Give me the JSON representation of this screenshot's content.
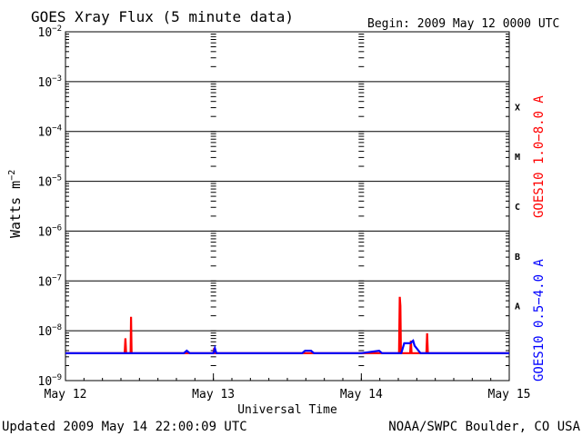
{
  "chart_data": {
    "type": "line",
    "title": "GOES Xray Flux (5 minute data)",
    "begin_text": "Begin:  2009 May 12 0000 UTC",
    "ylabel_main": "Watts m",
    "ylabel_exp": "−2",
    "xlabel": "Universal Time",
    "footer_left": "Updated 2009 May 14 22:00:09 UTC",
    "footer_right": "NOAA/SWPC Boulder, CO USA",
    "y_scale": "log",
    "ylim": [
      "1e-9",
      "1e-2"
    ],
    "y_ticks": [
      {
        "base": "10",
        "exp": "−2",
        "exponent": -2
      },
      {
        "base": "10",
        "exp": "−3",
        "exponent": -3
      },
      {
        "base": "10",
        "exp": "−4",
        "exponent": -4
      },
      {
        "base": "10",
        "exp": "−5",
        "exponent": -5
      },
      {
        "base": "10",
        "exp": "−6",
        "exponent": -6
      },
      {
        "base": "10",
        "exp": "−7",
        "exponent": -7
      },
      {
        "base": "10",
        "exp": "−8",
        "exponent": -8
      },
      {
        "base": "10",
        "exp": "−9",
        "exponent": -9
      }
    ],
    "x_ticks": [
      {
        "label": "May 12",
        "day": 0
      },
      {
        "label": "May 13",
        "day": 1
      },
      {
        "label": "May 14",
        "day": 2
      },
      {
        "label": "May 15",
        "day": 3
      }
    ],
    "xlim_days": [
      0,
      3
    ],
    "flare_classes": [
      {
        "label": "X",
        "exponent": -3.5
      },
      {
        "label": "M",
        "exponent": -4.5
      },
      {
        "label": "C",
        "exponent": -5.5
      },
      {
        "label": "B",
        "exponent": -6.5
      },
      {
        "label": "A",
        "exponent": -7.5
      }
    ],
    "series": [
      {
        "name": "GOES10 1.0−8.0 A",
        "color": "#ff0000",
        "points": [
          [
            0.0,
            -8.45
          ],
          [
            0.4,
            -8.45
          ],
          [
            0.405,
            -8.15
          ],
          [
            0.41,
            -8.45
          ],
          [
            0.44,
            -8.45
          ],
          [
            0.443,
            -7.72
          ],
          [
            0.447,
            -8.45
          ],
          [
            0.6,
            -8.45
          ],
          [
            1.0,
            -8.45
          ],
          [
            1.005,
            -8.35
          ],
          [
            1.01,
            -8.45
          ],
          [
            1.6,
            -8.45
          ],
          [
            2.0,
            -8.45
          ],
          [
            2.255,
            -8.45
          ],
          [
            2.26,
            -7.32
          ],
          [
            2.264,
            -7.5
          ],
          [
            2.268,
            -8.45
          ],
          [
            2.33,
            -8.45
          ],
          [
            2.335,
            -8.2
          ],
          [
            2.34,
            -8.45
          ],
          [
            2.44,
            -8.45
          ],
          [
            2.445,
            -8.05
          ],
          [
            2.45,
            -8.45
          ],
          [
            2.9,
            -8.45
          ],
          [
            3.0,
            -8.45
          ]
        ]
      },
      {
        "name": "GOES10 0.5−4.0 A",
        "color": "#0000ff",
        "points": [
          [
            0.0,
            -8.45
          ],
          [
            0.8,
            -8.45
          ],
          [
            0.82,
            -8.4
          ],
          [
            0.84,
            -8.45
          ],
          [
            1.0,
            -8.45
          ],
          [
            1.01,
            -8.35
          ],
          [
            1.02,
            -8.45
          ],
          [
            1.6,
            -8.45
          ],
          [
            1.62,
            -8.4
          ],
          [
            1.66,
            -8.4
          ],
          [
            1.68,
            -8.45
          ],
          [
            2.0,
            -8.45
          ],
          [
            2.12,
            -8.4
          ],
          [
            2.14,
            -8.45
          ],
          [
            2.27,
            -8.45
          ],
          [
            2.29,
            -8.25
          ],
          [
            2.33,
            -8.25
          ],
          [
            2.35,
            -8.2
          ],
          [
            2.36,
            -8.3
          ],
          [
            2.4,
            -8.45
          ],
          [
            3.0,
            -8.45
          ]
        ]
      }
    ]
  }
}
